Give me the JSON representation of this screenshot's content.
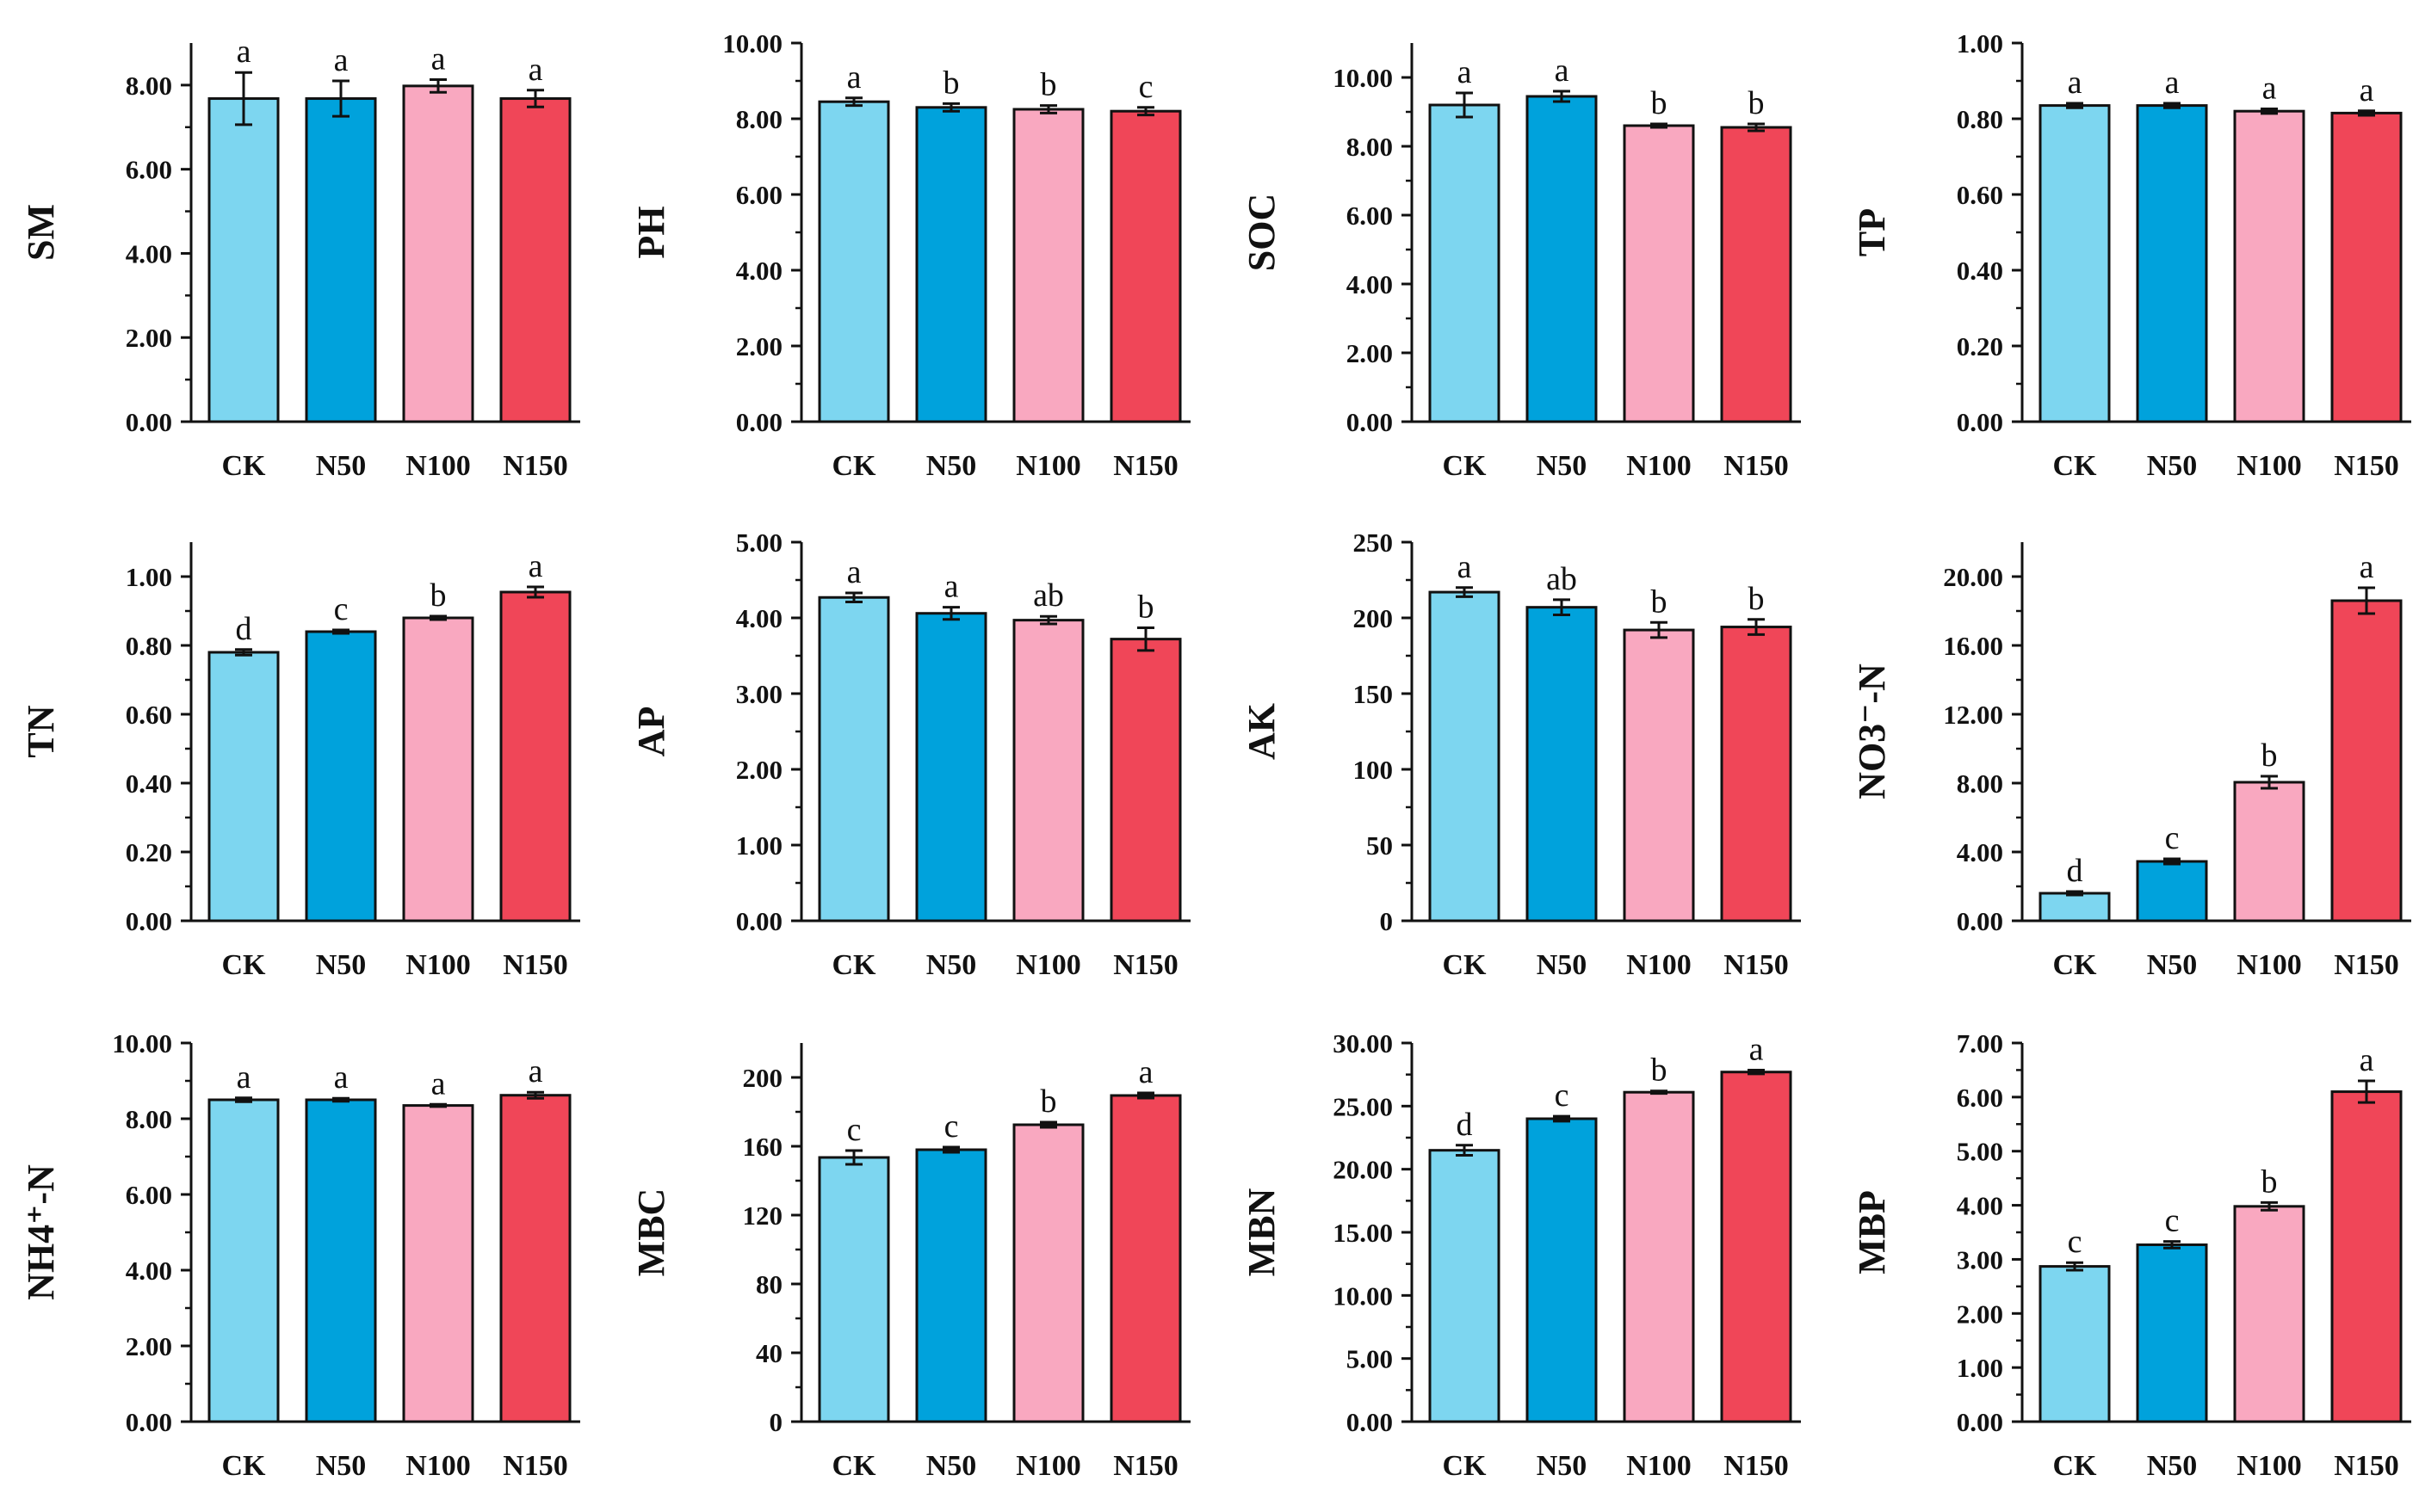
{
  "figure": {
    "colors": {
      "CK": "#7dd6f0",
      "N50": "#00a2dc",
      "N100": "#f9a8c0",
      "N150": "#f04658",
      "axis": "#111111"
    }
  },
  "chart_data": [
    {
      "type": "bar",
      "ylabel": "SM",
      "categories": [
        "CK",
        "N50",
        "N100",
        "N150"
      ],
      "values": [
        7.68,
        7.68,
        7.98,
        7.68
      ],
      "errors": [
        0.62,
        0.42,
        0.15,
        0.2
      ],
      "letters": [
        "a",
        "a",
        "a",
        "a"
      ],
      "ylim": [
        0,
        9
      ],
      "yticks": [
        0,
        2,
        4,
        6,
        8
      ],
      "ytick_labels": [
        "0.00",
        "2.00",
        "4.00",
        "6.00",
        "8.00"
      ],
      "grid": false
    },
    {
      "type": "bar",
      "ylabel": "PH",
      "categories": [
        "CK",
        "N50",
        "N100",
        "N150"
      ],
      "values": [
        8.45,
        8.3,
        8.25,
        8.2
      ],
      "errors": [
        0.1,
        0.1,
        0.1,
        0.1
      ],
      "letters": [
        "a",
        "b",
        "b",
        "c"
      ],
      "ylim": [
        0,
        10
      ],
      "yticks": [
        0,
        2,
        4,
        6,
        8,
        10
      ],
      "ytick_labels": [
        "0.00",
        "2.00",
        "4.00",
        "6.00",
        "8.00",
        "10.00"
      ],
      "grid": false
    },
    {
      "type": "bar",
      "ylabel": "SOC",
      "categories": [
        "CK",
        "N50",
        "N100",
        "N150"
      ],
      "values": [
        9.2,
        9.45,
        8.6,
        8.55
      ],
      "errors": [
        0.35,
        0.15,
        0.05,
        0.1
      ],
      "letters": [
        "a",
        "a",
        "b",
        "b"
      ],
      "ylim": [
        0,
        11
      ],
      "yticks": [
        0,
        2,
        4,
        6,
        8,
        10
      ],
      "ytick_labels": [
        "0.00",
        "2.00",
        "4.00",
        "6.00",
        "8.00",
        "10.00"
      ],
      "grid": false
    },
    {
      "type": "bar",
      "ylabel": "TP",
      "categories": [
        "CK",
        "N50",
        "N100",
        "N150"
      ],
      "values": [
        0.835,
        0.835,
        0.82,
        0.815
      ],
      "errors": [
        0.006,
        0.006,
        0.006,
        0.006
      ],
      "letters": [
        "a",
        "a",
        "a",
        "a"
      ],
      "ylim": [
        0,
        1
      ],
      "yticks": [
        0,
        0.2,
        0.4,
        0.6,
        0.8,
        1.0
      ],
      "ytick_labels": [
        "0.00",
        "0.20",
        "0.40",
        "0.60",
        "0.80",
        "1.00"
      ],
      "grid": false
    },
    {
      "type": "bar",
      "ylabel": "TN",
      "categories": [
        "CK",
        "N50",
        "N100",
        "N150"
      ],
      "values": [
        0.78,
        0.84,
        0.88,
        0.955
      ],
      "errors": [
        0.008,
        0.005,
        0.005,
        0.015
      ],
      "letters": [
        "d",
        "c",
        "b",
        "a"
      ],
      "ylim": [
        0,
        1.1
      ],
      "yticks": [
        0,
        0.2,
        0.4,
        0.6,
        0.8,
        1.0
      ],
      "ytick_labels": [
        "0.00",
        "0.20",
        "0.40",
        "0.60",
        "0.80",
        "1.00"
      ],
      "grid": false
    },
    {
      "type": "bar",
      "ylabel": "AP",
      "categories": [
        "CK",
        "N50",
        "N100",
        "N150"
      ],
      "values": [
        4.27,
        4.06,
        3.97,
        3.72
      ],
      "errors": [
        0.06,
        0.08,
        0.05,
        0.15
      ],
      "letters": [
        "a",
        "a",
        "ab",
        "b"
      ],
      "ylim": [
        0,
        5
      ],
      "yticks": [
        0,
        1,
        2,
        3,
        4,
        5
      ],
      "ytick_labels": [
        "0.00",
        "1.00",
        "2.00",
        "3.00",
        "4.00",
        "5.00"
      ],
      "grid": false
    },
    {
      "type": "bar",
      "ylabel": "AK",
      "categories": [
        "CK",
        "N50",
        "N100",
        "N150"
      ],
      "values": [
        217,
        207,
        192,
        194
      ],
      "errors": [
        3,
        5,
        5,
        5
      ],
      "letters": [
        "a",
        "ab",
        "b",
        "b"
      ],
      "ylim": [
        0,
        250
      ],
      "yticks": [
        0,
        50,
        100,
        150,
        200,
        250
      ],
      "ytick_labels": [
        "0",
        "50",
        "100",
        "150",
        "200",
        "250"
      ],
      "grid": false
    },
    {
      "type": "bar",
      "ylabel": "NO3⁻-N",
      "categories": [
        "CK",
        "N50",
        "N100",
        "N150"
      ],
      "values": [
        1.6,
        3.45,
        8.05,
        18.6
      ],
      "errors": [
        0.1,
        0.15,
        0.35,
        0.75
      ],
      "letters": [
        "d",
        "c",
        "b",
        "a"
      ],
      "ylim": [
        0,
        22
      ],
      "yticks": [
        0,
        4,
        8,
        12,
        16,
        20
      ],
      "ytick_labels": [
        "0.00",
        "4.00",
        "8.00",
        "12.00",
        "16.00",
        "20.00"
      ],
      "grid": false
    },
    {
      "type": "bar",
      "ylabel": "NH4⁺-N",
      "categories": [
        "CK",
        "N50",
        "N100",
        "N150"
      ],
      "values": [
        8.5,
        8.5,
        8.35,
        8.62
      ],
      "errors": [
        0.05,
        0.04,
        0.03,
        0.08
      ],
      "letters": [
        "a",
        "a",
        "a",
        "a"
      ],
      "ylim": [
        0,
        10
      ],
      "yticks": [
        0,
        2,
        4,
        6,
        8,
        10
      ],
      "ytick_labels": [
        "0.00",
        "2.00",
        "4.00",
        "6.00",
        "8.00",
        "10.00"
      ],
      "grid": false
    },
    {
      "type": "bar",
      "ylabel": "MBC",
      "categories": [
        "CK",
        "N50",
        "N100",
        "N150"
      ],
      "values": [
        153.5,
        158,
        172.5,
        189.5
      ],
      "errors": [
        4,
        1.5,
        1.5,
        1.5
      ],
      "letters": [
        "c",
        "c",
        "b",
        "a"
      ],
      "ylim": [
        0,
        220
      ],
      "yticks": [
        0,
        40,
        80,
        120,
        160,
        200
      ],
      "ytick_labels": [
        "0",
        "40",
        "80",
        "120",
        "160",
        "200"
      ],
      "grid": false
    },
    {
      "type": "bar",
      "ylabel": "MBN",
      "categories": [
        "CK",
        "N50",
        "N100",
        "N150"
      ],
      "values": [
        21.5,
        24.0,
        26.1,
        27.7
      ],
      "errors": [
        0.4,
        0.2,
        0.1,
        0.15
      ],
      "letters": [
        "d",
        "c",
        "b",
        "a"
      ],
      "ylim": [
        0,
        30
      ],
      "yticks": [
        0,
        5,
        10,
        15,
        20,
        25,
        30
      ],
      "ytick_labels": [
        "0.00",
        "5.00",
        "10.00",
        "15.00",
        "20.00",
        "25.00",
        "30.00"
      ],
      "grid": false
    },
    {
      "type": "bar",
      "ylabel": "MBP",
      "categories": [
        "CK",
        "N50",
        "N100",
        "N150"
      ],
      "values": [
        2.87,
        3.27,
        3.98,
        6.1
      ],
      "errors": [
        0.07,
        0.06,
        0.07,
        0.2
      ],
      "letters": [
        "c",
        "c",
        "b",
        "a"
      ],
      "ylim": [
        0,
        7
      ],
      "yticks": [
        0,
        1,
        2,
        3,
        4,
        5,
        6,
        7
      ],
      "ytick_labels": [
        "0.00",
        "1.00",
        "2.00",
        "3.00",
        "4.00",
        "5.00",
        "6.00",
        "7.00"
      ],
      "grid": false
    }
  ]
}
